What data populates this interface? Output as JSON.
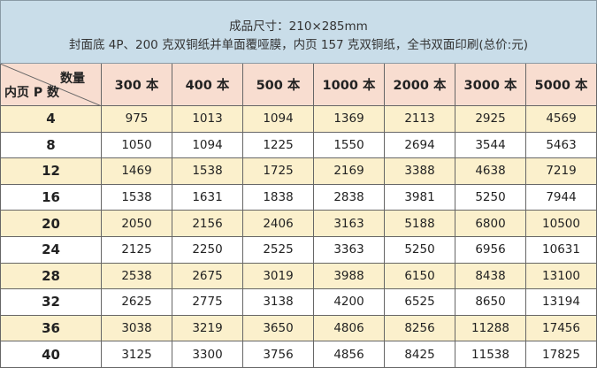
{
  "header": {
    "title": "成品尺寸：210×285mm",
    "subtitle": "封面底 4P、200 克双铜纸并单面覆哑膜，内页 157 克双铜纸，全书双面印刷(总价:元)"
  },
  "table": {
    "corner_top": "数量",
    "corner_bottom": "内页 P 数",
    "columns": [
      "300 本",
      "400 本",
      "500 本",
      "1000 本",
      "2000 本",
      "3000 本",
      "5000 本"
    ],
    "rows": [
      [
        4,
        975,
        1013,
        1094,
        1369,
        2113,
        2925,
        4569
      ],
      [
        8,
        1050,
        1094,
        1225,
        1550,
        2694,
        3544,
        5463
      ],
      [
        12,
        1469,
        1538,
        1725,
        2169,
        3388,
        4638,
        7219
      ],
      [
        16,
        1538,
        1631,
        1838,
        2838,
        3981,
        5250,
        7944
      ],
      [
        20,
        2050,
        2156,
        2406,
        3163,
        5188,
        6800,
        10500
      ],
      [
        24,
        2125,
        2250,
        2525,
        3363,
        5250,
        6956,
        10631
      ],
      [
        28,
        2538,
        2675,
        3019,
        3988,
        6150,
        8438,
        13100
      ],
      [
        32,
        2625,
        2775,
        3138,
        4200,
        6525,
        8650,
        13194
      ],
      [
        36,
        3038,
        3219,
        3650,
        4806,
        8256,
        11288,
        17456
      ],
      [
        40,
        3125,
        3300,
        3756,
        4856,
        8425,
        11538,
        17825
      ]
    ]
  }
}
